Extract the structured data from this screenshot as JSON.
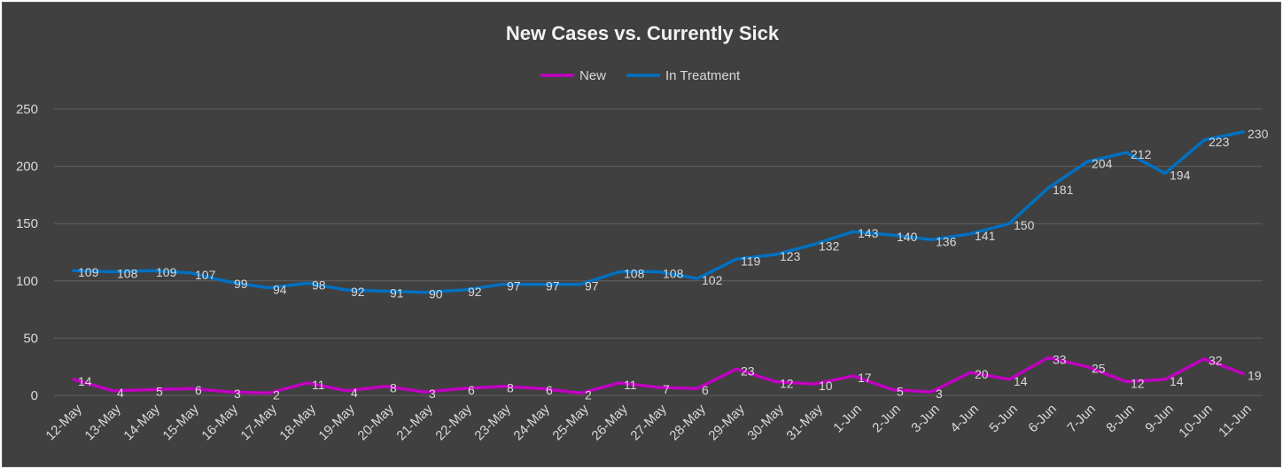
{
  "chart_data": {
    "type": "line",
    "title": "New Cases vs. Currently Sick",
    "xlabel": "",
    "ylabel": "",
    "ylim": [
      0,
      250
    ],
    "yticks": [
      0,
      50,
      100,
      150,
      200,
      250
    ],
    "grid": true,
    "legend_position": "top",
    "categories": [
      "12-May",
      "13-May",
      "14-May",
      "15-May",
      "16-May",
      "17-May",
      "18-May",
      "19-May",
      "20-May",
      "21-May",
      "22-May",
      "23-May",
      "24-May",
      "25-May",
      "26-May",
      "27-May",
      "28-May",
      "29-May",
      "30-May",
      "31-May",
      "1-Jun",
      "2-Jun",
      "3-Jun",
      "4-Jun",
      "5-Jun",
      "6-Jun",
      "7-Jun",
      "8-Jun",
      "9-Jun",
      "10-Jun",
      "11-Jun"
    ],
    "series": [
      {
        "name": "New",
        "color": "#c000c0",
        "values": [
          14,
          4,
          5,
          6,
          3,
          2,
          11,
          4,
          8,
          3,
          6,
          8,
          6,
          2,
          11,
          7,
          6,
          23,
          12,
          10,
          17,
          5,
          3,
          20,
          14,
          33,
          25,
          12,
          14,
          32,
          19
        ]
      },
      {
        "name": "In Treatment",
        "color": "#0070c0",
        "values": [
          109,
          108,
          109,
          107,
          99,
          94,
          98,
          92,
          91,
          90,
          92,
          97,
          97,
          97,
          108,
          108,
          102,
          119,
          123,
          132,
          143,
          140,
          136,
          141,
          150,
          181,
          204,
          212,
          194,
          223,
          230
        ]
      }
    ]
  }
}
